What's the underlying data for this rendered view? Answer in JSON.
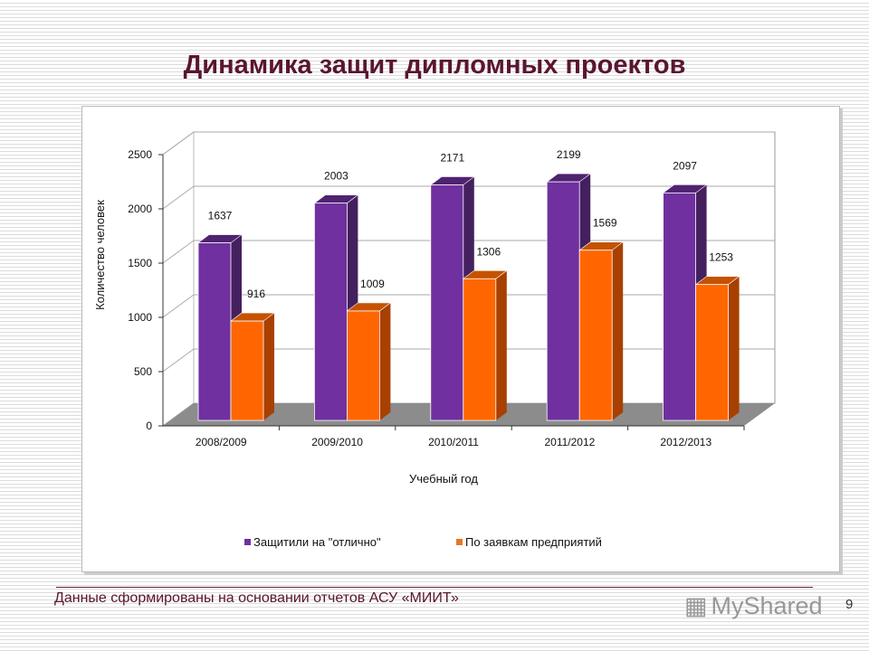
{
  "title": "Динамика защит дипломных проектов",
  "chart_data": {
    "type": "bar",
    "style": "3d-clustered",
    "categories": [
      "2008/2009",
      "2009/2010",
      "2010/2011",
      "2011/2012",
      "2012/2013"
    ],
    "series": [
      {
        "name": "Защитили на \"отлично\"",
        "values": [
          1637,
          2003,
          2171,
          2199,
          2097
        ],
        "color": "#7030a0"
      },
      {
        "name": "По заявкам предприятий",
        "values": [
          916,
          1009,
          1306,
          1569,
          1253
        ],
        "color": "#ff6600"
      }
    ],
    "xlabel": "Учебный год",
    "ylabel": "Количество человек",
    "ylim": [
      0,
      2500
    ],
    "yticks": [
      0,
      500,
      1000,
      1500,
      2000,
      2500
    ],
    "grid": true,
    "legend": "bottom"
  },
  "footer": {
    "note": "Данные сформированы на основании отчетов АСУ «МИИТ»",
    "page": "9",
    "watermark": "MyShared"
  }
}
